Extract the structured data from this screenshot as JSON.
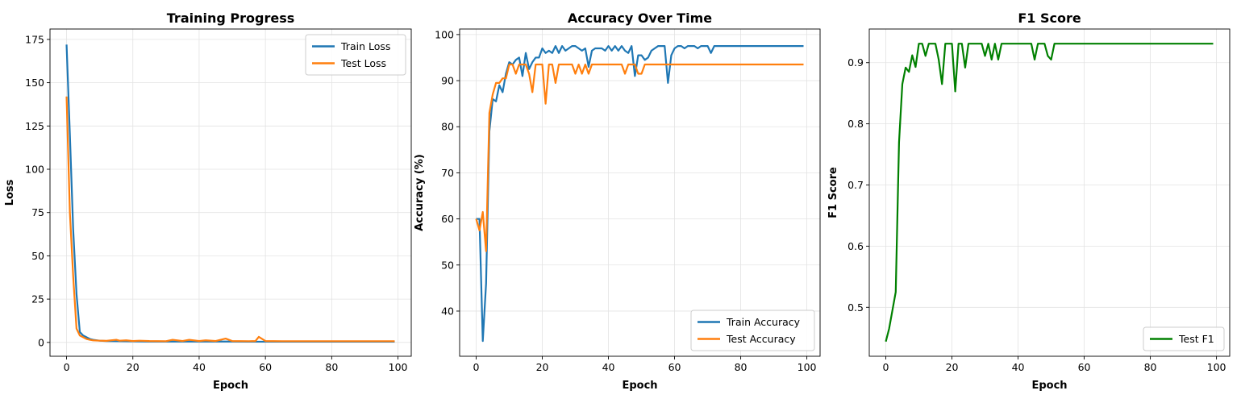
{
  "chart_data": [
    {
      "type": "line",
      "title": "Training Progress",
      "xlabel": "Epoch",
      "ylabel": "Loss",
      "xlim": [
        -5,
        104
      ],
      "ylim": [
        -8,
        181
      ],
      "xticks": [
        0,
        20,
        40,
        60,
        80,
        100
      ],
      "yticks": [
        0,
        25,
        50,
        75,
        100,
        125,
        150,
        175
      ],
      "grid": true,
      "legend_position": "top-right",
      "series": [
        {
          "name": "Train Loss",
          "color": "#1f77b4",
          "x": [
            0,
            1,
            2,
            3,
            4,
            5,
            6,
            7,
            8,
            10,
            12,
            15,
            20,
            25,
            30,
            35,
            40,
            45,
            50,
            55,
            58,
            60,
            65,
            70,
            75,
            80,
            85,
            90,
            95,
            99
          ],
          "y": [
            172,
            120,
            65,
            28,
            6,
            4,
            3,
            2,
            1.5,
            1,
            0.8,
            0.7,
            0.6,
            0.5,
            0.5,
            0.5,
            0.5,
            0.5,
            0.5,
            0.4,
            0.4,
            0.4,
            0.4,
            0.4,
            0.4,
            0.4,
            0.4,
            0.4,
            0.4,
            0.4
          ]
        },
        {
          "name": "Test Loss",
          "color": "#ff7f0e",
          "x": [
            0,
            1,
            2,
            3,
            4,
            5,
            6,
            7,
            8,
            10,
            12,
            15,
            16,
            18,
            20,
            22,
            25,
            30,
            32,
            35,
            37,
            40,
            42,
            45,
            48,
            50,
            55,
            57,
            58,
            60,
            65,
            70,
            75,
            80,
            85,
            90,
            95,
            99
          ],
          "y": [
            142,
            75,
            38,
            8,
            4,
            3,
            2,
            1.5,
            1.2,
            1,
            0.9,
            1.5,
            1,
            1.2,
            0.8,
            1,
            0.8,
            0.7,
            1.5,
            0.8,
            1.5,
            0.8,
            1.2,
            0.8,
            2.2,
            0.8,
            0.7,
            0.8,
            3.2,
            0.8,
            0.7,
            0.7,
            0.7,
            0.7,
            0.7,
            0.7,
            0.7,
            0.7
          ]
        }
      ]
    },
    {
      "type": "line",
      "title": "Accuracy Over Time",
      "xlabel": "Epoch",
      "ylabel": "Accuracy (%)",
      "xlim": [
        -5,
        104
      ],
      "ylim": [
        30.2,
        101.2
      ],
      "xticks": [
        0,
        20,
        40,
        60,
        80,
        100
      ],
      "yticks": [
        40,
        50,
        60,
        70,
        80,
        90,
        100
      ],
      "grid": true,
      "legend_position": "bottom-right",
      "series": [
        {
          "name": "Train Accuracy",
          "color": "#1f77b4",
          "x": [
            0,
            1,
            2,
            3,
            4,
            5,
            6,
            7,
            8,
            9,
            10,
            11,
            12,
            13,
            14,
            15,
            16,
            17,
            18,
            19,
            20,
            21,
            22,
            23,
            24,
            25,
            26,
            27,
            28,
            29,
            30,
            31,
            32,
            33,
            34,
            35,
            36,
            37,
            38,
            39,
            40,
            41,
            42,
            43,
            44,
            45,
            46,
            47,
            48,
            49,
            50,
            51,
            52,
            53,
            54,
            55,
            56,
            57,
            58,
            59,
            60,
            61,
            62,
            63,
            64,
            65,
            66,
            67,
            68,
            69,
            70,
            71,
            72,
            73,
            74,
            75,
            80,
            85,
            90,
            95,
            99
          ],
          "y": [
            60,
            60,
            33.5,
            46,
            79,
            86,
            85.5,
            89,
            87.5,
            91.5,
            94,
            93.5,
            94.5,
            95,
            91,
            96,
            92.5,
            94,
            95,
            95,
            97,
            96,
            96.5,
            96,
            97.5,
            96,
            97.5,
            96.5,
            97,
            97.5,
            97.5,
            97,
            96.5,
            97,
            93,
            96.5,
            97,
            97,
            97,
            96.5,
            97.5,
            96.5,
            97.5,
            96.5,
            97.5,
            96.5,
            96,
            97.5,
            91,
            95.5,
            95.5,
            94.5,
            95,
            96.5,
            97,
            97.5,
            97.5,
            97.5,
            89.5,
            95.5,
            97,
            97.5,
            97.5,
            97,
            97.5,
            97.5,
            97.5,
            97,
            97.5,
            97.5,
            97.5,
            96,
            97.5,
            97.5,
            97.5,
            97.5,
            97.5,
            97.5,
            97.5,
            97.5,
            97.5
          ]
        },
        {
          "name": "Test Accuracy",
          "color": "#ff7f0e",
          "x": [
            0,
            1,
            2,
            3,
            4,
            5,
            6,
            7,
            8,
            9,
            10,
            11,
            12,
            13,
            14,
            15,
            16,
            17,
            18,
            19,
            20,
            21,
            22,
            23,
            24,
            25,
            26,
            27,
            28,
            29,
            30,
            31,
            32,
            33,
            34,
            35,
            36,
            40,
            44,
            45,
            46,
            47,
            48,
            49,
            50,
            51,
            52,
            55,
            60,
            65,
            70,
            75,
            80,
            85,
            90,
            95,
            99
          ],
          "y": [
            60,
            57.5,
            61.5,
            53,
            83,
            87,
            89.5,
            89.5,
            90.5,
            90.5,
            93.5,
            93.5,
            91.5,
            93.5,
            93.5,
            93.5,
            91.5,
            87.5,
            93.5,
            93.5,
            93.5,
            85,
            93.5,
            93.5,
            89.5,
            93.5,
            93.5,
            93.5,
            93.5,
            93.5,
            91.5,
            93.5,
            91.5,
            93.5,
            91.5,
            93.5,
            93.5,
            93.5,
            93.5,
            91.5,
            93.5,
            93.5,
            93.5,
            91.5,
            91.5,
            93.5,
            93.5,
            93.5,
            93.5,
            93.5,
            93.5,
            93.5,
            93.5,
            93.5,
            93.5,
            93.5,
            93.5
          ]
        }
      ]
    },
    {
      "type": "line",
      "title": "F1 Score",
      "xlabel": "Epoch",
      "ylabel": "F1 Score",
      "xlim": [
        -5,
        104
      ],
      "ylim": [
        0.42,
        0.955
      ],
      "xticks": [
        0,
        20,
        40,
        60,
        80,
        100
      ],
      "yticks": [
        0.5,
        0.6,
        0.7,
        0.8,
        0.9
      ],
      "grid": true,
      "legend_position": "bottom-right",
      "series": [
        {
          "name": "Test F1",
          "color": "#008000",
          "x": [
            0,
            1,
            2,
            3,
            4,
            5,
            6,
            7,
            8,
            9,
            10,
            11,
            12,
            13,
            14,
            15,
            16,
            17,
            18,
            19,
            20,
            21,
            22,
            23,
            24,
            25,
            26,
            27,
            28,
            29,
            30,
            31,
            32,
            33,
            34,
            35,
            40,
            44,
            45,
            46,
            47,
            48,
            49,
            50,
            51,
            55,
            60,
            70,
            80,
            90,
            99
          ],
          "y": [
            0.444,
            0.465,
            0.495,
            0.525,
            0.77,
            0.865,
            0.892,
            0.885,
            0.912,
            0.893,
            0.931,
            0.931,
            0.911,
            0.931,
            0.931,
            0.931,
            0.905,
            0.865,
            0.931,
            0.931,
            0.931,
            0.853,
            0.931,
            0.931,
            0.892,
            0.931,
            0.931,
            0.931,
            0.931,
            0.931,
            0.911,
            0.931,
            0.905,
            0.931,
            0.905,
            0.931,
            0.931,
            0.931,
            0.905,
            0.931,
            0.931,
            0.931,
            0.911,
            0.905,
            0.931,
            0.931,
            0.931,
            0.931,
            0.931,
            0.931,
            0.931
          ]
        }
      ]
    }
  ]
}
